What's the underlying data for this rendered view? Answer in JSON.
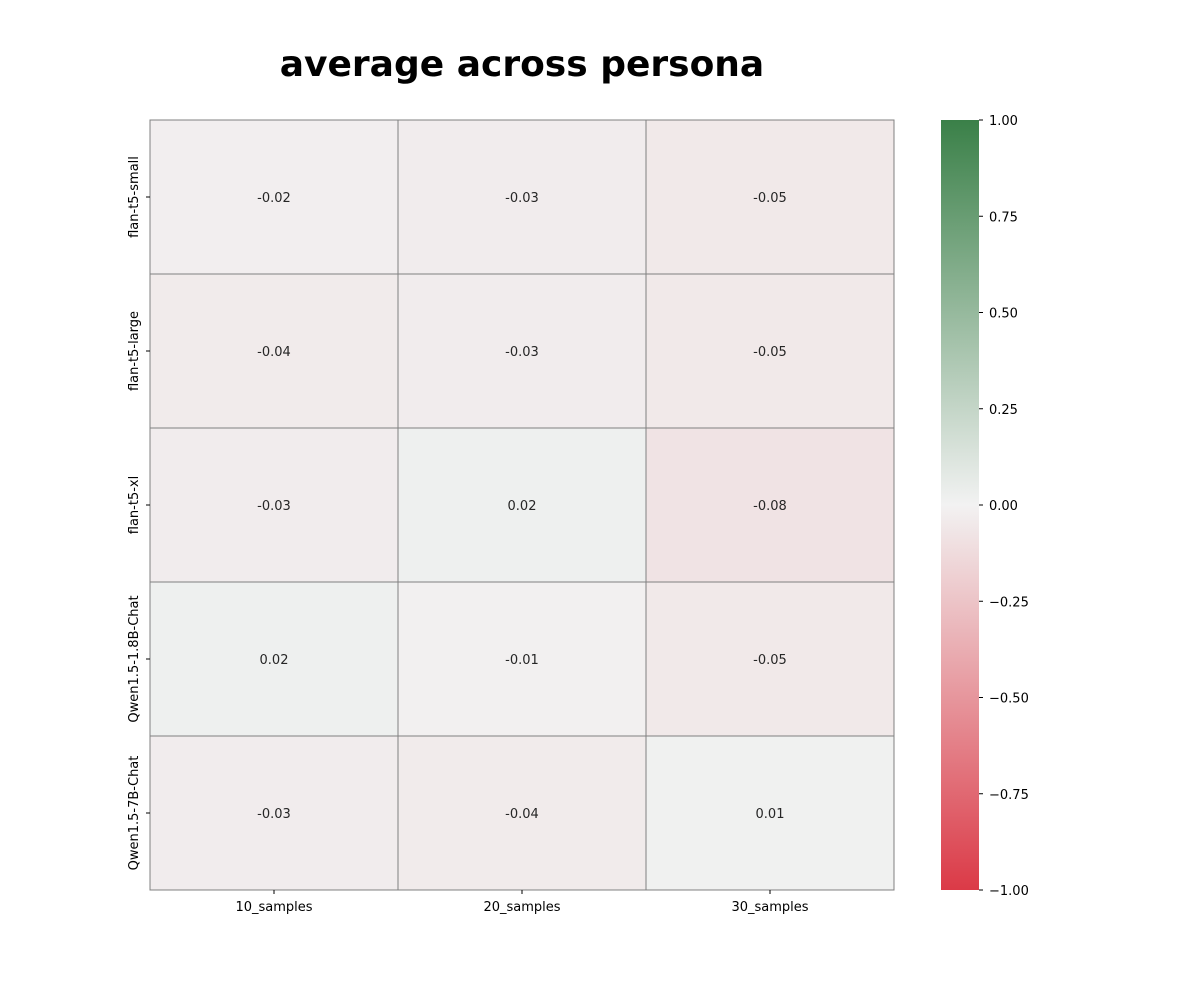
{
  "chart_data": {
    "type": "heatmap",
    "title": "average across persona",
    "x_categories": [
      "10_samples",
      "20_samples",
      "30_samples"
    ],
    "y_categories": [
      "flan-t5-small",
      "flan-t5-large",
      "flan-t5-xl",
      "Qwen1.5-1.8B-Chat",
      "Qwen1.5-7B-Chat"
    ],
    "values": [
      [
        -0.02,
        -0.03,
        -0.05
      ],
      [
        -0.04,
        -0.03,
        -0.05
      ],
      [
        -0.03,
        0.02,
        -0.08
      ],
      [
        0.02,
        -0.01,
        -0.05
      ],
      [
        -0.03,
        -0.04,
        0.01
      ]
    ],
    "value_labels": [
      [
        "-0.02",
        "-0.03",
        "-0.05"
      ],
      [
        "-0.04",
        "-0.03",
        "-0.05"
      ],
      [
        "-0.03",
        "0.02",
        "-0.08"
      ],
      [
        "0.02",
        "-0.01",
        "-0.05"
      ],
      [
        "-0.03",
        "-0.04",
        "0.01"
      ]
    ],
    "colorbar": {
      "vmin": -1.0,
      "vmax": 1.0,
      "ticks": [
        1.0,
        0.75,
        0.5,
        0.25,
        0.0,
        -0.25,
        -0.5,
        -0.75,
        -1.0
      ],
      "tick_labels": [
        "1.00",
        "0.75",
        "0.50",
        "0.25",
        "0.00",
        "−0.25",
        "−0.50",
        "−0.75",
        "−1.00"
      ],
      "colors": {
        "negative": "#db3a47",
        "center": "#f2f2f2",
        "positive": "#3a8048"
      }
    },
    "grid": true,
    "grid_color": "#808080"
  }
}
